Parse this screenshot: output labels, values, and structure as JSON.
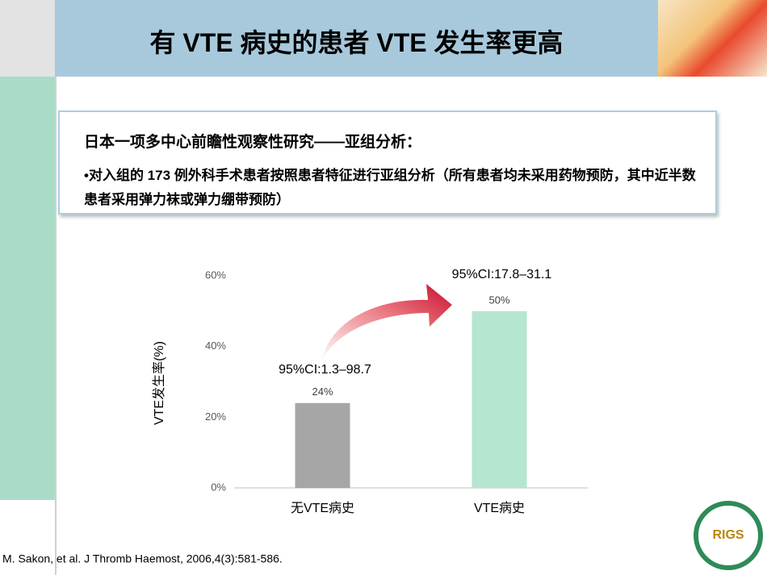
{
  "title": "有 VTE 病史的患者 VTE 发生率更高",
  "box": {
    "heading": "日本一项多中心前瞻性观察性研究——亚组分析：",
    "text": "•对入组的 173 例外科手术患者按照患者特征进行亚组分析（所有患者均未采用药物预防，其中近半数患者采用弹力袜或弹力绷带预防）"
  },
  "chart_data": {
    "type": "bar",
    "y_label": "VTE发生率(%)",
    "categories": [
      "无VTE病史",
      "VTE病史"
    ],
    "values": [
      24,
      50
    ],
    "value_labels": [
      "24%",
      "50%"
    ],
    "colors": [
      "#a6a6a6",
      "#b5e6cf"
    ],
    "ylim": [
      0,
      60
    ],
    "yticks": [
      {
        "value": 0,
        "label": "0%"
      },
      {
        "value": 20,
        "label": "20%"
      },
      {
        "value": 40,
        "label": "40%"
      },
      {
        "value": 60,
        "label": "60%"
      }
    ],
    "grid": false,
    "annotations": [
      "95%CI:1.3–98.7",
      "95%CI:17.8–31.1"
    ]
  },
  "citation": "M. Sakon, et al. J Thromb Haemost, 2006,4(3):581-586.",
  "logo_text": "RIGS"
}
